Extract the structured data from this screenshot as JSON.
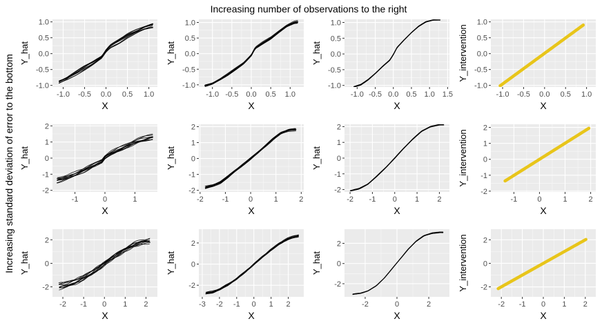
{
  "figure": {
    "title": "Increasing number of observations to the right",
    "row_label": "Increasing standard deviation of error to the bottom"
  },
  "colors": {
    "panel_background": "#ebebeb",
    "grid_major": "#ffffff",
    "fitted_curves": "#000000",
    "intervention_line": "#e8c51a",
    "tick_text": "#4d4d4d"
  },
  "chart_data": [
    {
      "type": "line",
      "row": 1,
      "col": 1,
      "xlabel": "X",
      "ylabel": "Y_hat",
      "xlim": [
        -1.25,
        1.2
      ],
      "ylim": [
        -1.05,
        1.08
      ],
      "xticks": [
        -1.0,
        -0.5,
        0.0,
        0.5,
        1.0
      ],
      "yticks": [
        -1.0,
        -0.5,
        0.0,
        0.5,
        1.0
      ],
      "tick_labels_x": [
        "-1.0",
        "-0.5",
        "0.0",
        "0.5",
        "1.0"
      ],
      "tick_labels_y": [
        "-1.0",
        "-0.5",
        "0.0",
        "0.5",
        "1.0"
      ],
      "x": [
        -1.1,
        -0.9,
        -0.7,
        -0.5,
        -0.3,
        -0.1,
        0.0,
        0.1,
        0.3,
        0.5,
        0.7,
        0.9,
        1.1
      ],
      "y": [
        -0.9,
        -0.78,
        -0.62,
        -0.45,
        -0.3,
        -0.12,
        0.08,
        0.22,
        0.38,
        0.55,
        0.68,
        0.8,
        0.88
      ],
      "replicates": 10,
      "spread": 0.06
    },
    {
      "type": "line",
      "row": 1,
      "col": 2,
      "xlabel": "X",
      "ylabel": "Y_hat",
      "xlim": [
        -1.35,
        1.35
      ],
      "ylim": [
        -1.07,
        1.1
      ],
      "xticks": [
        -1.0,
        -0.5,
        0.0,
        0.5,
        1.0
      ],
      "yticks": [
        -1.0,
        -0.5,
        0.0,
        0.5,
        1.0
      ],
      "tick_labels_x": [
        "-1.0",
        "-0.5",
        "0.0",
        "0.5",
        "1.0"
      ],
      "tick_labels_y": [
        "-1.0",
        "-0.5",
        "0.0",
        "0.5",
        "1.0"
      ],
      "x": [
        -1.2,
        -1.0,
        -0.8,
        -0.6,
        -0.4,
        -0.2,
        0.0,
        0.1,
        0.3,
        0.5,
        0.7,
        0.9,
        1.1,
        1.2
      ],
      "y": [
        -1.02,
        -0.95,
        -0.82,
        -0.66,
        -0.48,
        -0.3,
        -0.05,
        0.18,
        0.35,
        0.5,
        0.7,
        0.88,
        1.0,
        1.02
      ],
      "replicates": 10,
      "spread": 0.03
    },
    {
      "type": "line",
      "row": 1,
      "col": 3,
      "xlabel": "X",
      "ylabel": "Y_hat",
      "xlim": [
        -1.35,
        1.55
      ],
      "ylim": [
        -1.05,
        1.1
      ],
      "xticks": [
        -1.0,
        -0.5,
        0.0,
        0.5,
        1.0,
        1.5
      ],
      "yticks": [
        -1.0,
        -0.5,
        0.0,
        0.5,
        1.0
      ],
      "tick_labels_x": [
        "-1.0",
        "-0.5",
        "0.0",
        "0.5",
        "1.0",
        "1.5"
      ],
      "tick_labels_y": [
        "-1.0",
        "-0.5",
        "0.0",
        "0.5",
        "1.0"
      ],
      "x": [
        -1.1,
        -0.9,
        -0.7,
        -0.5,
        -0.3,
        -0.1,
        0.0,
        0.1,
        0.3,
        0.5,
        0.7,
        0.9,
        1.1,
        1.3
      ],
      "y": [
        -1.05,
        -0.98,
        -0.82,
        -0.62,
        -0.4,
        -0.2,
        -0.02,
        0.2,
        0.45,
        0.68,
        0.88,
        1.02,
        1.08,
        1.08
      ],
      "replicates": 6,
      "spread": 0.01
    },
    {
      "type": "line",
      "row": 1,
      "col": 4,
      "xlabel": "X",
      "ylabel": "Y_intervention",
      "xlim": [
        -1.28,
        1.22
      ],
      "ylim": [
        -1.05,
        1.08
      ],
      "xticks": [
        -1.0,
        -0.5,
        0.0,
        0.5,
        1.0
      ],
      "yticks": [
        -1.0,
        -0.5,
        0.0,
        0.5,
        1.0
      ],
      "tick_labels_x": [
        "-1.0",
        "-0.5",
        "0.0",
        "0.5",
        "1.0"
      ],
      "tick_labels_y": [
        "-1.0",
        "-0.5",
        "0.0",
        "0.5",
        "1.0"
      ],
      "x": [
        -1.15,
        1.15
      ],
      "y": [
        -1.1,
        1.12
      ],
      "replicates": 1,
      "spread": 0,
      "color_key": "intervention_line",
      "stroke": 4.5
    },
    {
      "type": "line",
      "row": 2,
      "col": 1,
      "xlabel": "X",
      "ylabel": "Y_hat",
      "xlim": [
        -1.75,
        1.75
      ],
      "ylim": [
        -2.1,
        2.1
      ],
      "xticks": [
        -1,
        0,
        1
      ],
      "yticks": [
        -2,
        -1,
        0,
        1,
        2
      ],
      "tick_labels_x": [
        "-1",
        "0",
        "1"
      ],
      "tick_labels_y": [
        "-2",
        "-1",
        "0",
        "1",
        "2"
      ],
      "x": [
        -1.6,
        -1.3,
        -1.0,
        -0.7,
        -0.4,
        -0.1,
        0.0,
        0.2,
        0.5,
        0.8,
        1.1,
        1.4,
        1.6
      ],
      "y": [
        -1.35,
        -1.2,
        -1.0,
        -0.75,
        -0.45,
        -0.2,
        0.05,
        0.3,
        0.55,
        0.8,
        1.05,
        1.2,
        1.28
      ],
      "replicates": 10,
      "spread": 0.12
    },
    {
      "type": "line",
      "row": 2,
      "col": 2,
      "xlabel": "X",
      "ylabel": "Y_hat",
      "xlim": [
        -2.05,
        2.1
      ],
      "ylim": [
        -2.1,
        2.15
      ],
      "xticks": [
        -2,
        -1,
        0,
        1,
        2
      ],
      "yticks": [
        -2,
        -1,
        0,
        1,
        2
      ],
      "tick_labels_x": [
        "-2",
        "-1",
        "0",
        "1",
        "2"
      ],
      "tick_labels_y": [
        "-2",
        "-1",
        "0",
        "1",
        "2"
      ],
      "x": [
        -1.8,
        -1.5,
        -1.2,
        -0.9,
        -0.6,
        -0.3,
        0.0,
        0.3,
        0.6,
        0.9,
        1.2,
        1.5,
        1.8
      ],
      "y": [
        -1.82,
        -1.7,
        -1.5,
        -1.15,
        -0.75,
        -0.38,
        0.0,
        0.4,
        0.82,
        1.25,
        1.6,
        1.78,
        1.82
      ],
      "replicates": 10,
      "spread": 0.05
    },
    {
      "type": "line",
      "row": 2,
      "col": 3,
      "xlabel": "X",
      "ylabel": "Y_hat",
      "xlim": [
        -2.25,
        2.45
      ],
      "ylim": [
        -2.15,
        2.15
      ],
      "xticks": [
        -2,
        -1,
        0,
        1,
        2
      ],
      "yticks": [
        -2,
        -1,
        0,
        1,
        2
      ],
      "tick_labels_x": [
        "-2",
        "-1",
        "0",
        "1",
        "2"
      ],
      "tick_labels_y": [
        "-2",
        "-1",
        "0",
        "1",
        "2"
      ],
      "x": [
        -2.0,
        -1.6,
        -1.2,
        -0.8,
        -0.4,
        0.0,
        0.4,
        0.8,
        1.2,
        1.6,
        2.0,
        2.2
      ],
      "y": [
        -2.08,
        -1.95,
        -1.65,
        -1.15,
        -0.6,
        0.0,
        0.62,
        1.2,
        1.7,
        2.0,
        2.12,
        2.12
      ],
      "replicates": 6,
      "spread": 0.02
    },
    {
      "type": "line",
      "row": 2,
      "col": 4,
      "xlabel": "X",
      "ylabel": "Y_intervention",
      "xlim": [
        -1.9,
        2.2
      ],
      "ylim": [
        -2.05,
        2.2
      ],
      "xticks": [
        -1,
        0,
        1,
        2
      ],
      "yticks": [
        -2,
        -1,
        0,
        1,
        2
      ],
      "tick_labels_x": [
        "-1",
        "0",
        "1",
        "2"
      ],
      "tick_labels_y": [
        "-2",
        "-1",
        "0",
        "1",
        "2"
      ],
      "x": [
        -1.7,
        2.0
      ],
      "y": [
        -1.72,
        2.02
      ],
      "replicates": 1,
      "spread": 0,
      "color_key": "intervention_line",
      "stroke": 4.5
    },
    {
      "type": "line",
      "row": 3,
      "col": 1,
      "xlabel": "X",
      "ylabel": "Y_hat",
      "xlim": [
        -2.5,
        2.55
      ],
      "ylim": [
        -2.85,
        2.9
      ],
      "xticks": [
        -2,
        -1,
        0,
        1,
        2
      ],
      "yticks": [
        -2,
        0,
        2
      ],
      "tick_labels_x": [
        "-2",
        "-1",
        "0",
        "1",
        "2"
      ],
      "tick_labels_y": [
        "-2",
        "0",
        "2"
      ],
      "x": [
        -2.2,
        -1.8,
        -1.4,
        -1.0,
        -0.6,
        -0.2,
        0.2,
        0.6,
        1.0,
        1.4,
        1.8,
        2.2
      ],
      "y": [
        -2.0,
        -1.85,
        -1.6,
        -1.25,
        -0.8,
        -0.3,
        0.25,
        0.75,
        1.2,
        1.6,
        1.85,
        1.95
      ],
      "replicates": 10,
      "spread": 0.18
    },
    {
      "type": "line",
      "row": 3,
      "col": 2,
      "xlabel": "X",
      "ylabel": "Y_hat",
      "xlim": [
        -3.2,
        2.9
      ],
      "ylim": [
        -3.1,
        3.3
      ],
      "xticks": [
        -3,
        -2,
        -1,
        0,
        1,
        2
      ],
      "yticks": [
        -2,
        0,
        2
      ],
      "tick_labels_x": [
        "-3",
        "-2",
        "-1",
        "0",
        "1",
        "2"
      ],
      "tick_labels_y": [
        "-2",
        "0",
        "2"
      ],
      "x": [
        -2.8,
        -2.4,
        -2.0,
        -1.5,
        -1.0,
        -0.5,
        0.0,
        0.5,
        1.0,
        1.5,
        2.0,
        2.4,
        2.6
      ],
      "y": [
        -2.7,
        -2.6,
        -2.35,
        -1.9,
        -1.35,
        -0.7,
        0.0,
        0.7,
        1.35,
        1.95,
        2.4,
        2.6,
        2.65
      ],
      "replicates": 10,
      "spread": 0.08
    },
    {
      "type": "line",
      "row": 3,
      "col": 3,
      "xlabel": "X",
      "ylabel": "Y_hat",
      "xlim": [
        -3.3,
        3.3
      ],
      "ylim": [
        -3.3,
        3.4
      ],
      "xticks": [
        -2,
        0,
        2
      ],
      "yticks": [
        -2,
        0,
        2
      ],
      "tick_labels_x": [
        "-2",
        "0",
        "2"
      ],
      "tick_labels_y": [
        "-2",
        "0",
        "2"
      ],
      "x": [
        -2.8,
        -2.3,
        -1.8,
        -1.3,
        -0.8,
        -0.3,
        0.2,
        0.7,
        1.2,
        1.7,
        2.2,
        2.7,
        2.9
      ],
      "y": [
        -3.05,
        -2.95,
        -2.7,
        -2.2,
        -1.45,
        -0.5,
        0.45,
        1.4,
        2.2,
        2.75,
        3.0,
        3.08,
        3.08
      ],
      "replicates": 6,
      "spread": 0.03
    },
    {
      "type": "line",
      "row": 3,
      "col": 4,
      "xlabel": "X",
      "ylabel": "Y_intervention",
      "xlim": [
        -2.5,
        2.5
      ],
      "ylim": [
        -2.85,
        2.9
      ],
      "xticks": [
        -2,
        -1,
        0,
        1,
        2
      ],
      "yticks": [
        -2,
        0,
        2
      ],
      "tick_labels_x": [
        "-2",
        "-1",
        "0",
        "1",
        "2"
      ],
      "tick_labels_y": [
        "-2",
        "0",
        "2"
      ],
      "x": [
        -2.3,
        2.3
      ],
      "y": [
        -2.3,
        2.3
      ],
      "replicates": 1,
      "spread": 0,
      "color_key": "intervention_line",
      "stroke": 4.5
    }
  ]
}
